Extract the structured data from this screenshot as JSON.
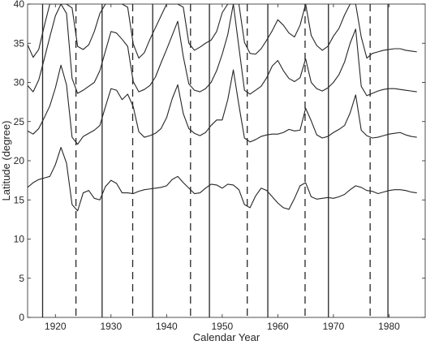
{
  "chart_data": {
    "type": "line",
    "xlabel": "Calendar Year",
    "ylabel": "Latitude (degree)",
    "xlim": [
      1915,
      1986.5
    ],
    "ylim": [
      0,
      40
    ],
    "xticks": [
      1920,
      1930,
      1940,
      1950,
      1960,
      1970,
      1980
    ],
    "yticks": [
      0,
      5,
      10,
      15,
      20,
      25,
      30,
      35,
      40
    ],
    "grid": false,
    "line_color": "#262626",
    "solid_vlines": [
      1917.7,
      1928.4,
      1937.5,
      1947.7,
      1958.2,
      1969.1,
      1979.8
    ],
    "dashed_vlines": [
      1923.7,
      1933.9,
      1944.3,
      1954.5,
      1964.9,
      1976.6
    ],
    "series": [
      {
        "x": [
          1915,
          1916,
          1917,
          1918,
          1919,
          1920,
          1921,
          1922,
          1923,
          1924,
          1925,
          1926,
          1927,
          1928,
          1929,
          1930,
          1931,
          1932,
          1933,
          1934,
          1935,
          1936,
          1937,
          1938,
          1939,
          1940,
          1941,
          1942,
          1943,
          1944,
          1945,
          1946,
          1947,
          1948,
          1949,
          1950,
          1951,
          1952,
          1953,
          1954,
          1955,
          1956,
          1957,
          1958,
          1959,
          1960,
          1961,
          1962,
          1963,
          1964,
          1965,
          1966,
          1967,
          1968,
          1969,
          1970,
          1971,
          1972,
          1973,
          1974,
          1975,
          1976,
          1977,
          1978,
          1979,
          1980,
          1981,
          1982,
          1983,
          1984,
          1985
        ],
        "y": [
          16.6,
          17.2,
          17.6,
          17.8,
          18.0,
          19.5,
          21.7,
          19.7,
          14.4,
          13.6,
          15.9,
          16.2,
          15.2,
          15.0,
          16.7,
          17.5,
          17.1,
          15.9,
          15.9,
          15.8,
          16.1,
          16.3,
          16.4,
          16.5,
          16.6,
          16.8,
          17.6,
          18.0,
          17.2,
          16.5,
          15.8,
          15.9,
          16.5,
          17.0,
          16.9,
          16.5,
          17.0,
          16.9,
          16.3,
          14.4,
          14.0,
          15.5,
          16.5,
          16.2,
          15.4,
          14.6,
          14.0,
          13.8,
          15.2,
          16.8,
          17.2,
          15.4,
          15.1,
          15.2,
          15.3,
          15.2,
          15.4,
          15.7,
          16.3,
          16.8,
          16.6,
          16.2,
          16.1,
          15.8,
          16.0,
          16.2,
          16.3,
          16.3,
          16.2,
          16.0,
          15.9
        ]
      },
      {
        "x": [
          1915,
          1916,
          1917,
          1918,
          1919,
          1920,
          1921,
          1922,
          1923,
          1924,
          1925,
          1926,
          1927,
          1928,
          1929,
          1930,
          1931,
          1932,
          1933,
          1934,
          1935,
          1936,
          1937,
          1938,
          1939,
          1940,
          1941,
          1942,
          1943,
          1944,
          1945,
          1946,
          1947,
          1948,
          1949,
          1950,
          1951,
          1952,
          1953,
          1954,
          1955,
          1956,
          1957,
          1958,
          1959,
          1960,
          1961,
          1962,
          1963,
          1964,
          1965,
          1966,
          1967,
          1968,
          1969,
          1970,
          1971,
          1972,
          1973,
          1974,
          1975,
          1976,
          1977,
          1978,
          1979,
          1980,
          1981,
          1982,
          1983,
          1984,
          1985
        ],
        "y": [
          23.8,
          23.4,
          24.1,
          25.5,
          27.0,
          29.3,
          32.2,
          29.7,
          23.0,
          22.1,
          23.1,
          23.5,
          23.9,
          24.5,
          26.9,
          29.2,
          29.0,
          27.8,
          28.5,
          26.9,
          23.7,
          23.0,
          23.2,
          23.5,
          24.1,
          25.5,
          27.9,
          29.7,
          26.0,
          24.1,
          23.5,
          23.2,
          23.6,
          24.5,
          25.2,
          25.2,
          27.8,
          31.6,
          27.1,
          22.9,
          22.4,
          22.7,
          23.1,
          23.3,
          23.4,
          23.4,
          23.6,
          24.0,
          23.8,
          23.9,
          26.7,
          25.1,
          23.3,
          22.9,
          23.1,
          23.6,
          24.0,
          24.5,
          26.1,
          28.4,
          23.9,
          23.2,
          22.9,
          23.0,
          23.2,
          23.4,
          23.5,
          23.6,
          23.3,
          23.1,
          23.0
        ]
      },
      {
        "x": [
          1915,
          1916,
          1917,
          1918,
          1919,
          1920,
          1921,
          1922,
          1923,
          1924,
          1925,
          1926,
          1927,
          1928,
          1929,
          1930,
          1931,
          1932,
          1933,
          1934,
          1935,
          1936,
          1937,
          1938,
          1939,
          1940,
          1941,
          1942,
          1943,
          1944,
          1945,
          1946,
          1947,
          1948,
          1949,
          1950,
          1951,
          1952,
          1953,
          1954,
          1955,
          1956,
          1957,
          1958,
          1959,
          1960,
          1961,
          1962,
          1963,
          1964,
          1965,
          1966,
          1967,
          1968,
          1969,
          1970,
          1971,
          1972,
          1973,
          1974,
          1975,
          1976,
          1977,
          1978,
          1979,
          1980,
          1981,
          1982,
          1983,
          1984,
          1985
        ],
        "y": [
          29.6,
          28.8,
          30.3,
          33.0,
          35.8,
          38.5,
          40.0,
          38.8,
          30.5,
          28.6,
          29.0,
          29.5,
          30.0,
          31.5,
          34.0,
          36.5,
          36.3,
          35.5,
          34.6,
          30.1,
          28.8,
          29.1,
          29.6,
          30.7,
          32.5,
          34.2,
          36.0,
          37.8,
          33.3,
          29.8,
          29.0,
          28.8,
          29.2,
          30.0,
          31.5,
          33.6,
          36.1,
          40.0,
          34.5,
          29.0,
          28.5,
          29.0,
          29.5,
          30.6,
          32.1,
          32.8,
          31.5,
          30.5,
          30.1,
          30.6,
          33.0,
          30.0,
          29.2,
          28.9,
          29.3,
          30.0,
          31.0,
          32.6,
          35.0,
          36.8,
          29.5,
          28.3,
          28.6,
          28.9,
          29.1,
          29.2,
          29.2,
          29.1,
          29.0,
          28.9,
          28.8
        ]
      },
      {
        "x": [
          1915,
          1916,
          1917,
          1918,
          1919,
          1920,
          1921,
          1922,
          1923,
          1924,
          1925,
          1926,
          1927,
          1928,
          1929,
          1930,
          1931,
          1932,
          1933,
          1934,
          1935,
          1936,
          1937,
          1938,
          1939,
          1940,
          1941,
          1942,
          1943,
          1944,
          1945,
          1946,
          1947,
          1948,
          1949,
          1950,
          1951,
          1952,
          1953,
          1954,
          1955,
          1956,
          1957,
          1958,
          1959,
          1960,
          1961,
          1962,
          1963,
          1964,
          1965,
          1966,
          1967,
          1968,
          1969,
          1970,
          1971,
          1972,
          1973,
          1974,
          1975,
          1976,
          1977,
          1978,
          1979,
          1980,
          1981,
          1982,
          1983,
          1984,
          1985
        ],
        "y": [
          34.8,
          33.2,
          34.2,
          37.2,
          40.0,
          40.0,
          40.0,
          40.0,
          39.5,
          34.6,
          34.2,
          34.8,
          36.5,
          38.8,
          40.0,
          40.0,
          40.0,
          40.0,
          39.6,
          34.9,
          33.1,
          33.8,
          35.5,
          37.0,
          38.5,
          40.0,
          40.0,
          40.0,
          39.6,
          35.0,
          34.1,
          34.5,
          35.0,
          35.4,
          36.5,
          38.9,
          40.0,
          40.0,
          40.0,
          35.1,
          33.7,
          33.6,
          34.3,
          35.4,
          36.6,
          38.0,
          37.3,
          36.3,
          35.8,
          37.3,
          40.0,
          36.0,
          34.7,
          34.1,
          34.6,
          35.9,
          36.9,
          38.6,
          40.0,
          40.0,
          35.8,
          33.1,
          33.7,
          33.9,
          34.1,
          34.2,
          34.3,
          34.3,
          34.1,
          34.0,
          33.9
        ]
      }
    ]
  }
}
